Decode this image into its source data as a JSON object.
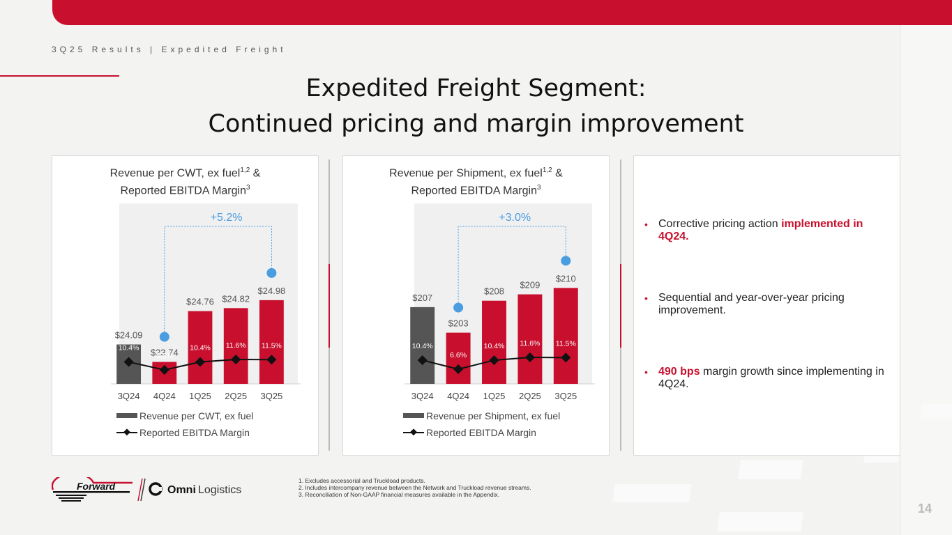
{
  "header": {
    "subtitle": "3Q25 Results | Expedited Freight",
    "title_line1": "Expedited Freight Segment:",
    "title_line2": "Continued pricing and margin improvement"
  },
  "colors": {
    "brand_red": "#c8102e",
    "gray_bar": "#555555",
    "callout_blue": "#4a9de0"
  },
  "chart_data": [
    {
      "type": "bar",
      "title": "Revenue per CWT, ex fuel",
      "title_sup": "1,2",
      "title_suffix": " &",
      "title_line2": "Reported EBITDA Margin",
      "title_line2_sup": "3",
      "categories": [
        "3Q24",
        "4Q24",
        "1Q25",
        "2Q25",
        "3Q25"
      ],
      "series": [
        {
          "name": "Revenue per CWT, ex fuel",
          "values": [
            24.09,
            23.74,
            24.76,
            24.82,
            24.98
          ],
          "labels": [
            "$24.09",
            "$23.74",
            "$24.76",
            "$24.82",
            "$24.98"
          ]
        },
        {
          "name": "Reported EBITDA Margin",
          "values": [
            10.4,
            6.6,
            10.4,
            11.6,
            11.5
          ],
          "labels": [
            "10.4%",
            "6.6%",
            "10.4%",
            "11.6%",
            "11.5%"
          ]
        }
      ],
      "annotation": "+5.2%",
      "legend": [
        "Revenue per CWT, ex fuel",
        "Reported EBITDA Margin"
      ],
      "ylim": [
        23.3,
        25.3
      ]
    },
    {
      "type": "bar",
      "title": "Revenue per Shipment, ex fuel",
      "title_sup": "1,2",
      "title_suffix": " &",
      "title_line2": "Reported EBITDA Margin",
      "title_line2_sup": "3",
      "categories": [
        "3Q24",
        "4Q24",
        "1Q25",
        "2Q25",
        "3Q25"
      ],
      "series": [
        {
          "name": "Revenue per Shipment, ex fuel",
          "values": [
            207,
            203,
            208,
            209,
            210
          ],
          "labels": [
            "$207",
            "$203",
            "$208",
            "$209",
            "$210"
          ]
        },
        {
          "name": "Reported EBITDA Margin",
          "values": [
            10.4,
            6.6,
            10.4,
            11.6,
            11.5
          ],
          "labels": [
            "10.4%",
            "6.6%",
            "10.4%",
            "11.6%",
            "11.5%"
          ]
        }
      ],
      "annotation": "+3.0%",
      "legend": [
        "Revenue per Shipment, ex fuel",
        "Reported EBITDA Margin"
      ],
      "ylim": [
        195,
        212
      ]
    }
  ],
  "bullets": [
    {
      "pre": "Corrective pricing action ",
      "bold": "implemented in 4Q24.",
      "post": ""
    },
    {
      "pre": "Sequential and year-over-year pricing improvement.",
      "bold": "",
      "post": ""
    },
    {
      "pre": "",
      "bold": "490 bps",
      "post": " margin growth since implementing in 4Q24."
    }
  ],
  "bullet_symbol": "•",
  "logos": {
    "forward": "Forward",
    "omni_bold": "Omni",
    "omni_light": "Logistics"
  },
  "footnotes": [
    "1.  Excludes accessorial and Truckload products.",
    "2.  Includes intercompany revenue between the Network and Truckload revenue streams.",
    "3.  Reconciliation of Non-GAAP financial measures available in the Appendix."
  ],
  "page_number": "14"
}
